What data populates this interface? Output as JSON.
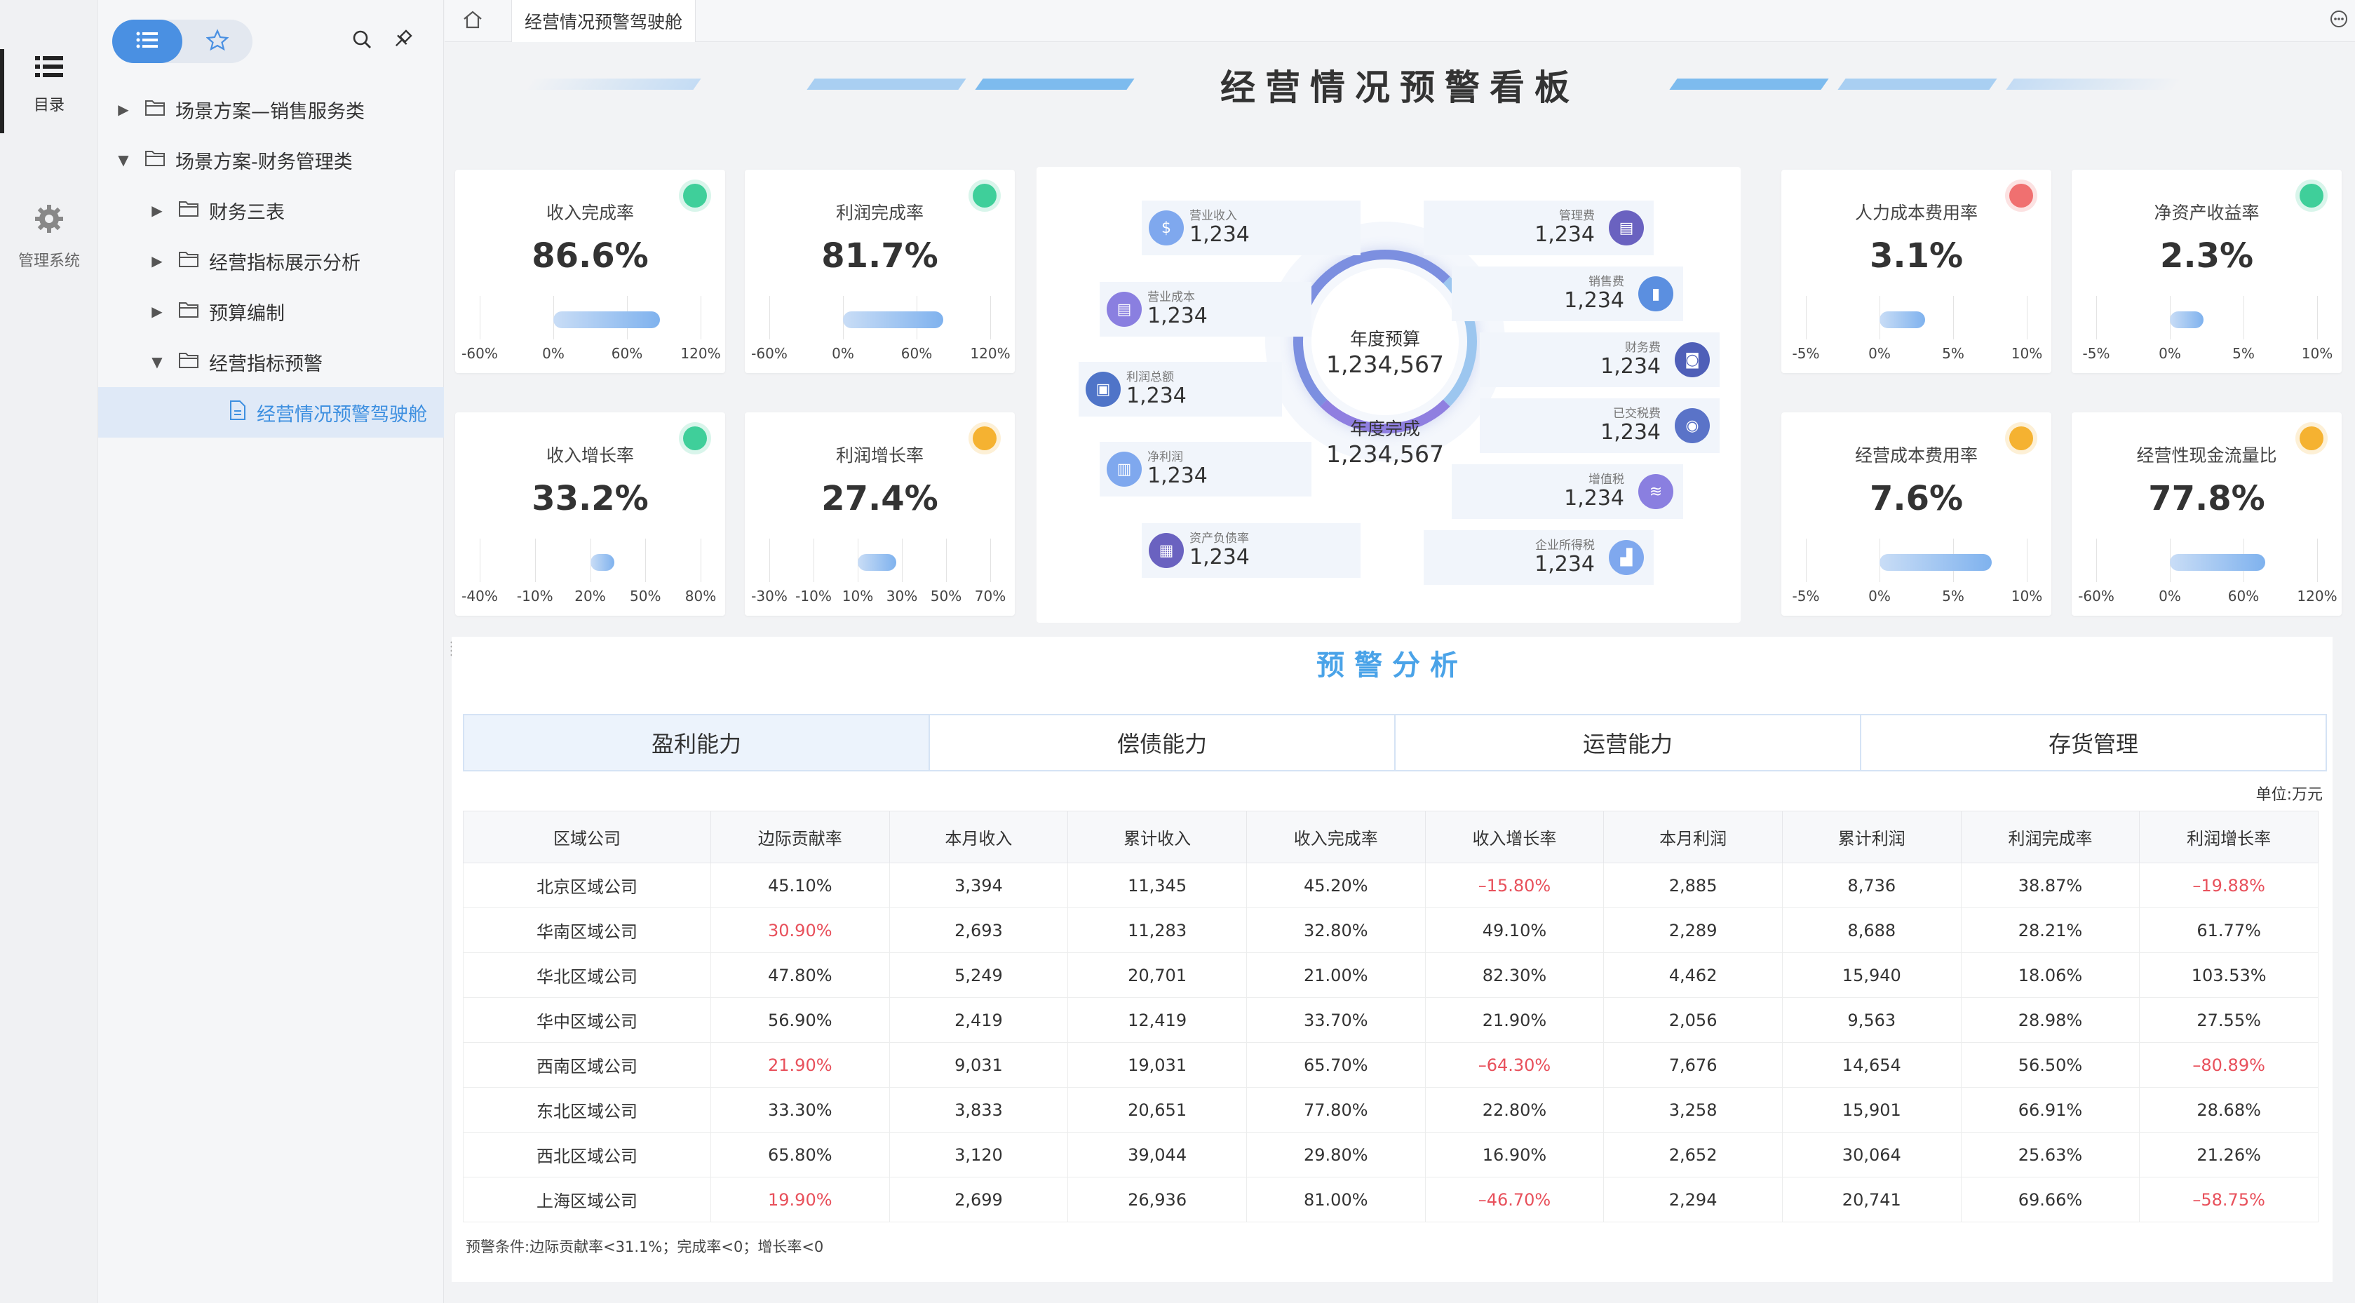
{
  "rail": {
    "items": [
      {
        "label": "目录",
        "icon": "list-icon"
      },
      {
        "label": "管理系统",
        "icon": "gear-icon"
      }
    ]
  },
  "tree": {
    "nodes": [
      {
        "label": "场景方案—销售服务类",
        "level": 0,
        "state": "collapsed"
      },
      {
        "label": "场景方案-财务管理类",
        "level": 0,
        "state": "expanded"
      },
      {
        "label": "财务三表",
        "level": 1,
        "state": "collapsed"
      },
      {
        "label": "经营指标展示分析",
        "level": 1,
        "state": "collapsed"
      },
      {
        "label": "预算编制",
        "level": 1,
        "state": "collapsed"
      },
      {
        "label": "经营指标预警",
        "level": 1,
        "state": "expanded"
      },
      {
        "label": "经营情况预警驾驶舱",
        "level": 2,
        "state": "selected"
      }
    ]
  },
  "tabs": {
    "active": "经营情况预警驾驶舱"
  },
  "board": {
    "title": "经营情况预警看板"
  },
  "kpis": [
    {
      "title": "收入完成率",
      "value": "86.6%",
      "status_color": "#3fcf9a",
      "ticks": [
        "-60%",
        "0%",
        "60%",
        "120%"
      ],
      "bar_from": "0%",
      "bar_to": "86.6%"
    },
    {
      "title": "利润完成率",
      "value": "81.7%",
      "status_color": "#3fcf9a",
      "ticks": [
        "-60%",
        "0%",
        "60%",
        "120%"
      ],
      "bar_from": "0%",
      "bar_to": "81.7%"
    },
    {
      "title": "收入增长率",
      "value": "33.2%",
      "status_color": "#3fcf9a",
      "ticks": [
        "-40%",
        "-10%",
        "20%",
        "50%",
        "80%"
      ],
      "bar_from": "20%",
      "bar_to": "33.2%"
    },
    {
      "title": "利润增长率",
      "value": "27.4%",
      "status_color": "#f5b231",
      "ticks": [
        "-30%",
        "-10%",
        "10%",
        "30%",
        "50%",
        "70%"
      ],
      "bar_from": "10%",
      "bar_to": "27.4%"
    },
    {
      "title": "人力成本费用率",
      "value": "3.1%",
      "status_color": "#f07070",
      "ticks": [
        "-5%",
        "0%",
        "5%",
        "10%"
      ],
      "bar_from": "0%",
      "bar_to": "3.1%"
    },
    {
      "title": "净资产收益率",
      "value": "2.3%",
      "status_color": "#3fcf9a",
      "ticks": [
        "-5%",
        "0%",
        "5%",
        "10%"
      ],
      "bar_from": "0%",
      "bar_to": "2.3%"
    },
    {
      "title": "经营成本费用率",
      "value": "7.6%",
      "status_color": "#f5b231",
      "ticks": [
        "-5%",
        "0%",
        "5%",
        "10%"
      ],
      "bar_from": "0%",
      "bar_to": "7.6%"
    },
    {
      "title": "经营性现金流量比",
      "value": "77.8%",
      "status_color": "#f5b231",
      "ticks": [
        "-60%",
        "0%",
        "60%",
        "120%"
      ],
      "bar_from": "0%",
      "bar_to": "77.8%"
    }
  ],
  "center": {
    "budget_label": "年度预算",
    "budget_value": "1,234,567",
    "done_label": "年度完成",
    "done_value": "1,234,567",
    "left_items": [
      {
        "label": "营业收入",
        "value": "1,234",
        "color": "#7fa8ee",
        "icon": "coin-icon"
      },
      {
        "label": "营业成本",
        "value": "1,234",
        "color": "#8a7fe0",
        "icon": "document-icon"
      },
      {
        "label": "利润总额",
        "value": "1,234",
        "color": "#4f74c8",
        "icon": "wallet-icon"
      },
      {
        "label": "净利润",
        "value": "1,234",
        "color": "#7fa8ee",
        "icon": "report-icon"
      },
      {
        "label": "资产负债率",
        "value": "1,234",
        "color": "#6a62c0",
        "icon": "ledger-icon"
      }
    ],
    "right_items": [
      {
        "label": "管理费",
        "value": "1,234",
        "color": "#6a62c0",
        "icon": "calendar-icon"
      },
      {
        "label": "销售费",
        "value": "1,234",
        "color": "#5b8fe0",
        "icon": "bar-chart-icon"
      },
      {
        "label": "财务费",
        "value": "1,234",
        "color": "#4f5fb8",
        "icon": "safe-icon"
      },
      {
        "label": "已交税费",
        "value": "1,234",
        "color": "#5a73c8",
        "icon": "stamp-icon"
      },
      {
        "label": "增值税",
        "value": "1,234",
        "color": "#8a7fe0",
        "icon": "coins-stack-icon"
      },
      {
        "label": "企业所得税",
        "value": "1,234",
        "color": "#7fa8ee",
        "icon": "growth-chart-icon"
      }
    ]
  },
  "analysis": {
    "title": "预警分析",
    "tabs": [
      "盈利能力",
      "偿债能力",
      "运营能力",
      "存货管理"
    ],
    "active_tab": 0,
    "unit": "单位:万元",
    "columns": [
      "区域公司",
      "边际贡献率",
      "本月收入",
      "累计收入",
      "收入完成率",
      "收入增长率",
      "本月利润",
      "累计利润",
      "利润完成率",
      "利润增长率"
    ],
    "rows": [
      {
        "cells": [
          "北京区域公司",
          "45.10%",
          "3,394",
          "11,345",
          "45.20%",
          "–15.80%",
          "2,885",
          "8,736",
          "38.87%",
          "–19.88%"
        ],
        "red": [
          5,
          9
        ]
      },
      {
        "cells": [
          "华南区域公司",
          "30.90%",
          "2,693",
          "11,283",
          "32.80%",
          "49.10%",
          "2,289",
          "8,688",
          "28.21%",
          "61.77%"
        ],
        "red": [
          1
        ]
      },
      {
        "cells": [
          "华北区域公司",
          "47.80%",
          "5,249",
          "20,701",
          "21.00%",
          "82.30%",
          "4,462",
          "15,940",
          "18.06%",
          "103.53%"
        ],
        "red": []
      },
      {
        "cells": [
          "华中区域公司",
          "56.90%",
          "2,419",
          "12,419",
          "33.70%",
          "21.90%",
          "2,056",
          "9,563",
          "28.98%",
          "27.55%"
        ],
        "red": []
      },
      {
        "cells": [
          "西南区域公司",
          "21.90%",
          "9,031",
          "19,031",
          "65.70%",
          "–64.30%",
          "7,676",
          "14,654",
          "56.50%",
          "–80.89%"
        ],
        "red": [
          1,
          5,
          9
        ]
      },
      {
        "cells": [
          "东北区域公司",
          "33.30%",
          "3,833",
          "20,651",
          "77.80%",
          "22.80%",
          "3,258",
          "15,901",
          "66.91%",
          "28.68%"
        ],
        "red": []
      },
      {
        "cells": [
          "西北区域公司",
          "65.80%",
          "3,120",
          "39,044",
          "29.80%",
          "16.90%",
          "2,652",
          "30,064",
          "25.63%",
          "21.26%"
        ],
        "red": []
      },
      {
        "cells": [
          "上海区域公司",
          "19.90%",
          "2,699",
          "26,936",
          "81.00%",
          "–46.70%",
          "2,294",
          "20,741",
          "69.66%",
          "–58.75%"
        ],
        "red": [
          1,
          5,
          9
        ]
      }
    ],
    "note": "预警条件:边际贡献率<31.1%；完成率<0；增长率<0"
  }
}
